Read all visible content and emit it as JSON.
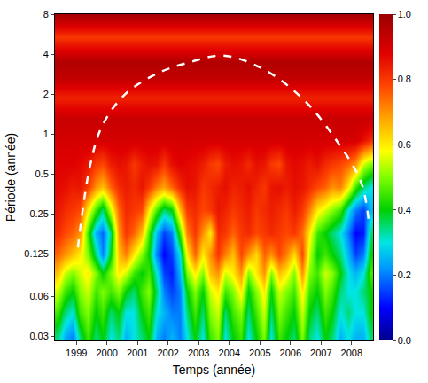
{
  "chart_data": {
    "type": "heatmap",
    "x_label": "Temps (année)",
    "y_label": "Période (année)",
    "log": "y",
    "xlim": [
      1998.3,
      2008.7
    ],
    "ylim": [
      0.028,
      8
    ],
    "xticks": [
      1999,
      2000,
      2001,
      2002,
      2003,
      2004,
      2005,
      2006,
      2007,
      2008
    ],
    "yticks": [
      0.03,
      0.06,
      0.125,
      0.25,
      0.5,
      1,
      2,
      4,
      8
    ],
    "zlim": [
      0,
      1
    ],
    "zticks": [
      {
        "value": 0,
        "label": "0.0"
      },
      {
        "value": 0.2,
        "label": "0.2"
      },
      {
        "value": 0.4,
        "label": "0.4"
      },
      {
        "value": 0.6,
        "label": "0.6"
      },
      {
        "value": 0.8,
        "label": "0.8"
      },
      {
        "value": 1,
        "label": "1.0"
      }
    ],
    "x": [
      1998.375,
      1998.625,
      1998.875,
      1999.125,
      1999.375,
      1999.625,
      1999.875,
      2000.125,
      2000.375,
      2000.625,
      2000.875,
      2001.125,
      2001.375,
      2001.625,
      2001.875,
      2002.125,
      2002.375,
      2002.625,
      2002.875,
      2003.125,
      2003.375,
      2003.625,
      2003.875,
      2004.125,
      2004.375,
      2004.625,
      2004.875,
      2005.125,
      2005.375,
      2005.625,
      2005.875,
      2006.125,
      2006.375,
      2006.625,
      2006.875,
      2007.125,
      2007.375,
      2007.625,
      2007.875,
      2008.125,
      2008.375,
      2008.625
    ],
    "y": [
      0.03,
      0.045,
      0.065,
      0.09,
      0.125,
      0.18,
      0.27,
      0.4,
      0.6,
      0.9,
      1.3,
      1.9,
      2.6,
      3.5,
      5.4,
      8
    ],
    "z": [
      [
        0.35,
        0.25,
        0.2,
        0.35,
        0.45,
        0.35,
        0.4,
        0.3,
        0.35,
        0.25,
        0.3,
        0.35,
        0.4,
        0.25,
        0.2,
        0.25,
        0.2,
        0.3,
        0.4,
        0.3,
        0.45,
        0.5,
        0.3,
        0.4,
        0.45,
        0.3,
        0.4,
        0.5,
        0.3,
        0.45,
        0.4,
        0.35,
        0.5,
        0.35,
        0.3,
        0.4,
        0.35,
        0.25,
        0.3,
        0.25,
        0.25,
        0.35
      ],
      [
        0.45,
        0.35,
        0.3,
        0.45,
        0.5,
        0.4,
        0.45,
        0.35,
        0.4,
        0.3,
        0.3,
        0.4,
        0.45,
        0.3,
        0.25,
        0.2,
        0.2,
        0.35,
        0.45,
        0.35,
        0.5,
        0.55,
        0.35,
        0.45,
        0.5,
        0.35,
        0.45,
        0.55,
        0.35,
        0.5,
        0.45,
        0.4,
        0.55,
        0.4,
        0.35,
        0.45,
        0.4,
        0.3,
        0.35,
        0.3,
        0.3,
        0.4
      ],
      [
        0.55,
        0.45,
        0.4,
        0.5,
        0.55,
        0.45,
        0.5,
        0.45,
        0.5,
        0.4,
        0.35,
        0.45,
        0.5,
        0.35,
        0.2,
        0.15,
        0.2,
        0.4,
        0.5,
        0.4,
        0.55,
        0.6,
        0.45,
        0.5,
        0.6,
        0.4,
        0.5,
        0.6,
        0.4,
        0.55,
        0.5,
        0.45,
        0.6,
        0.45,
        0.4,
        0.5,
        0.45,
        0.35,
        0.3,
        0.3,
        0.35,
        0.4
      ],
      [
        0.65,
        0.55,
        0.5,
        0.55,
        0.6,
        0.5,
        0.4,
        0.5,
        0.6,
        0.55,
        0.45,
        0.4,
        0.45,
        0.3,
        0.15,
        0.12,
        0.25,
        0.5,
        0.6,
        0.5,
        0.65,
        0.7,
        0.55,
        0.6,
        0.7,
        0.5,
        0.6,
        0.7,
        0.5,
        0.65,
        0.6,
        0.5,
        0.7,
        0.5,
        0.45,
        0.55,
        0.5,
        0.4,
        0.3,
        0.25,
        0.3,
        0.45
      ],
      [
        0.75,
        0.7,
        0.65,
        0.6,
        0.5,
        0.35,
        0.2,
        0.4,
        0.65,
        0.72,
        0.6,
        0.5,
        0.4,
        0.2,
        0.1,
        0.15,
        0.3,
        0.6,
        0.75,
        0.6,
        0.7,
        0.8,
        0.72,
        0.65,
        0.78,
        0.7,
        0.62,
        0.75,
        0.7,
        0.78,
        0.72,
        0.62,
        0.78,
        0.55,
        0.4,
        0.45,
        0.4,
        0.35,
        0.25,
        0.15,
        0.2,
        0.4
      ],
      [
        0.82,
        0.78,
        0.75,
        0.7,
        0.45,
        0.25,
        0.18,
        0.35,
        0.7,
        0.8,
        0.75,
        0.65,
        0.45,
        0.25,
        0.15,
        0.2,
        0.45,
        0.72,
        0.8,
        0.7,
        0.6,
        0.82,
        0.8,
        0.75,
        0.8,
        0.82,
        0.78,
        0.8,
        0.82,
        0.8,
        0.78,
        0.8,
        0.74,
        0.6,
        0.45,
        0.4,
        0.35,
        0.3,
        0.2,
        0.1,
        0.12,
        0.35
      ],
      [
        0.85,
        0.82,
        0.8,
        0.78,
        0.6,
        0.45,
        0.35,
        0.55,
        0.75,
        0.82,
        0.8,
        0.78,
        0.6,
        0.45,
        0.35,
        0.4,
        0.65,
        0.8,
        0.82,
        0.78,
        0.8,
        0.85,
        0.83,
        0.8,
        0.82,
        0.84,
        0.8,
        0.82,
        0.84,
        0.82,
        0.8,
        0.84,
        0.8,
        0.72,
        0.6,
        0.55,
        0.5,
        0.45,
        0.3,
        0.2,
        0.15,
        0.25
      ],
      [
        0.87,
        0.86,
        0.84,
        0.85,
        0.8,
        0.7,
        0.65,
        0.75,
        0.82,
        0.84,
        0.82,
        0.85,
        0.8,
        0.72,
        0.68,
        0.75,
        0.82,
        0.86,
        0.85,
        0.8,
        0.82,
        0.84,
        0.86,
        0.83,
        0.84,
        0.86,
        0.83,
        0.8,
        0.85,
        0.86,
        0.84,
        0.86,
        0.85,
        0.82,
        0.78,
        0.75,
        0.7,
        0.72,
        0.6,
        0.45,
        0.35,
        0.3
      ],
      [
        0.88,
        0.88,
        0.88,
        0.87,
        0.85,
        0.8,
        0.78,
        0.84,
        0.86,
        0.85,
        0.8,
        0.84,
        0.86,
        0.85,
        0.8,
        0.86,
        0.88,
        0.87,
        0.86,
        0.84,
        0.8,
        0.78,
        0.84,
        0.86,
        0.85,
        0.82,
        0.86,
        0.85,
        0.8,
        0.78,
        0.85,
        0.87,
        0.86,
        0.84,
        0.86,
        0.82,
        0.8,
        0.78,
        0.75,
        0.7,
        0.55,
        0.5
      ],
      [
        0.9,
        0.9,
        0.9,
        0.9,
        0.9,
        0.9,
        0.9,
        0.9,
        0.9,
        0.9,
        0.9,
        0.9,
        0.9,
        0.9,
        0.9,
        0.9,
        0.9,
        0.9,
        0.9,
        0.9,
        0.9,
        0.9,
        0.9,
        0.9,
        0.9,
        0.9,
        0.9,
        0.9,
        0.9,
        0.9,
        0.9,
        0.9,
        0.9,
        0.9,
        0.9,
        0.9,
        0.9,
        0.9,
        0.9,
        0.9,
        0.86,
        0.82
      ],
      [
        0.92,
        0.92,
        0.92,
        0.92,
        0.92,
        0.92,
        0.92,
        0.92,
        0.92,
        0.92,
        0.92,
        0.92,
        0.92,
        0.92,
        0.92,
        0.92,
        0.92,
        0.92,
        0.92,
        0.92,
        0.92,
        0.92,
        0.92,
        0.92,
        0.92,
        0.92,
        0.92,
        0.92,
        0.92,
        0.92,
        0.92,
        0.92,
        0.92,
        0.92,
        0.92,
        0.92,
        0.92,
        0.92,
        0.92,
        0.92,
        0.92,
        0.92
      ],
      [
        0.83,
        0.83,
        0.83,
        0.83,
        0.83,
        0.83,
        0.83,
        0.83,
        0.83,
        0.83,
        0.83,
        0.83,
        0.83,
        0.83,
        0.83,
        0.83,
        0.83,
        0.83,
        0.83,
        0.83,
        0.83,
        0.83,
        0.83,
        0.83,
        0.83,
        0.83,
        0.83,
        0.83,
        0.83,
        0.83,
        0.83,
        0.83,
        0.83,
        0.83,
        0.83,
        0.83,
        0.83,
        0.83,
        0.83,
        0.83,
        0.83,
        0.83
      ],
      [
        0.93,
        0.93,
        0.93,
        0.93,
        0.93,
        0.93,
        0.93,
        0.93,
        0.93,
        0.93,
        0.93,
        0.93,
        0.93,
        0.93,
        0.93,
        0.93,
        0.93,
        0.93,
        0.93,
        0.93,
        0.93,
        0.93,
        0.93,
        0.93,
        0.93,
        0.93,
        0.93,
        0.93,
        0.93,
        0.93,
        0.93,
        0.93,
        0.93,
        0.93,
        0.93,
        0.93,
        0.93,
        0.93,
        0.93,
        0.93,
        0.93,
        0.93
      ],
      [
        0.96,
        0.96,
        0.96,
        0.96,
        0.96,
        0.96,
        0.96,
        0.96,
        0.96,
        0.96,
        0.96,
        0.96,
        0.96,
        0.96,
        0.96,
        0.96,
        0.96,
        0.96,
        0.96,
        0.96,
        0.96,
        0.96,
        0.96,
        0.96,
        0.96,
        0.96,
        0.96,
        0.96,
        0.96,
        0.96,
        0.96,
        0.96,
        0.96,
        0.96,
        0.96,
        0.96,
        0.96,
        0.96,
        0.96,
        0.96,
        0.96,
        0.96
      ],
      [
        0.8,
        0.8,
        0.8,
        0.8,
        0.8,
        0.8,
        0.8,
        0.8,
        0.8,
        0.8,
        0.8,
        0.8,
        0.8,
        0.8,
        0.8,
        0.8,
        0.8,
        0.8,
        0.8,
        0.8,
        0.8,
        0.8,
        0.8,
        0.8,
        0.8,
        0.8,
        0.8,
        0.8,
        0.8,
        0.8,
        0.8,
        0.8,
        0.8,
        0.8,
        0.8,
        0.8,
        0.8,
        0.8,
        0.8,
        0.8,
        0.8,
        0.8
      ],
      [
        0.98,
        0.98,
        0.98,
        0.98,
        0.98,
        0.98,
        0.98,
        0.98,
        0.98,
        0.98,
        0.98,
        0.98,
        0.98,
        0.98,
        0.98,
        0.98,
        0.98,
        0.98,
        0.98,
        0.98,
        0.98,
        0.98,
        0.98,
        0.98,
        0.98,
        0.98,
        0.98,
        0.98,
        0.98,
        0.98,
        0.98,
        0.98,
        0.98,
        0.98,
        0.98,
        0.98,
        0.98,
        0.98,
        0.98,
        0.98,
        0.98,
        0.98
      ]
    ],
    "series": [
      {
        "type": "line",
        "color": "#ffffff",
        "line_style": "dashed",
        "x": [
          1999.05,
          1999.45,
          1999.85,
          2000.6,
          2001.7,
          2002.75,
          2003.8,
          2005.1,
          2006.45,
          2007.5,
          2008.3,
          2008.55
        ],
        "values": [
          0.14,
          0.58,
          1.16,
          2.0,
          2.9,
          3.5,
          3.9,
          3.1,
          1.8,
          0.9,
          0.44,
          0.23
        ]
      }
    ]
  }
}
